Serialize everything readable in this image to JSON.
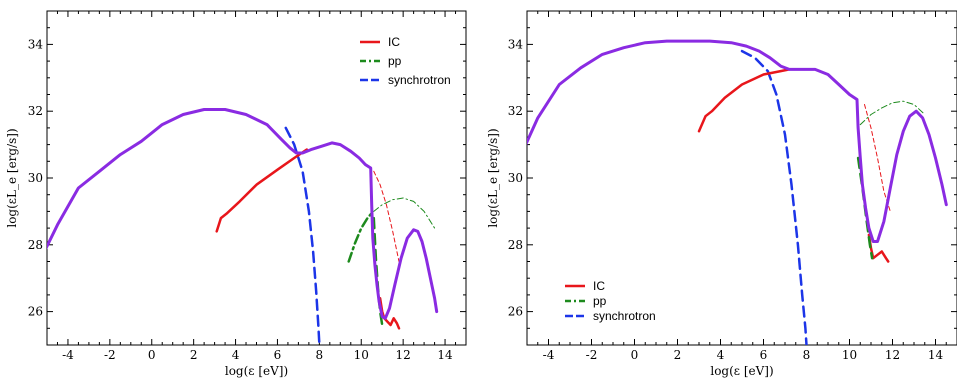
{
  "chart_data": [
    {
      "type": "line",
      "xlabel": "log(ε [eV])",
      "ylabel": "log(εL_e [erg/s])",
      "xlim": [
        -5,
        15
      ],
      "ylim": [
        25,
        35
      ],
      "xticks": [
        -4,
        -2,
        0,
        2,
        4,
        6,
        8,
        10,
        12,
        14
      ],
      "yticks": [
        26,
        28,
        30,
        32,
        34
      ],
      "grid": false,
      "legend_position": "top-right",
      "legend": [
        {
          "label": "IC",
          "color": "#e8161b",
          "dash": "solid"
        },
        {
          "label": "pp",
          "color": "#1d8a1d",
          "dash": "dashdot"
        },
        {
          "label": "synchrotron",
          "color": "#1c35e8",
          "dash": "dashed"
        }
      ],
      "series": [
        {
          "name": "synchrotron",
          "color": "#1c35e8",
          "dash": "dashed",
          "width": 2.5,
          "x": [
            6.4,
            6.8,
            7.2,
            7.5,
            7.7,
            7.85,
            7.95,
            8.0
          ],
          "y": [
            31.5,
            31.0,
            30.2,
            29.0,
            27.8,
            26.6,
            25.6,
            25.0
          ]
        },
        {
          "name": "IC",
          "color": "#e8161b",
          "dash": "solid",
          "width": 2.5,
          "x": [
            3.1,
            3.3,
            3.6,
            4.2,
            5.0,
            6.0,
            6.8,
            7.4
          ],
          "y": [
            28.4,
            28.8,
            28.95,
            29.3,
            29.8,
            30.25,
            30.6,
            30.85
          ]
        },
        {
          "name": "IC",
          "color": "#e8161b",
          "dash": "solid",
          "width": 2.5,
          "x": [
            10.9,
            11.0,
            11.1,
            11.25,
            11.4,
            11.55,
            11.7,
            11.8
          ],
          "y": [
            26.4,
            26.0,
            25.8,
            25.7,
            25.6,
            25.8,
            25.65,
            25.5
          ]
        },
        {
          "name": "IC",
          "color": "#e8161b",
          "dash": "dashed-thin",
          "width": 1,
          "x": [
            10.6,
            10.9,
            11.2,
            11.5,
            11.8
          ],
          "y": [
            30.2,
            29.8,
            29.2,
            28.4,
            27.5
          ]
        },
        {
          "name": "pp",
          "color": "#1d8a1d",
          "dash": "dashdot",
          "width": 2.5,
          "x": [
            9.4,
            9.7,
            10.0,
            10.3,
            10.5
          ],
          "y": [
            27.5,
            28.05,
            28.5,
            28.8,
            28.95
          ]
        },
        {
          "name": "pp",
          "color": "#1d8a1d",
          "dash": "dashed",
          "width": 2.5,
          "x": [
            10.6,
            10.7,
            10.8,
            10.9,
            11.0,
            11.05
          ],
          "y": [
            28.8,
            27.6,
            26.7,
            26.0,
            25.6,
            25.5
          ]
        },
        {
          "name": "pp",
          "color": "#1d8a1d",
          "dash": "dashdot-thin",
          "width": 1,
          "x": [
            10.6,
            11.0,
            11.5,
            12.0,
            12.5,
            13.0,
            13.5
          ],
          "y": [
            29.0,
            29.2,
            29.35,
            29.4,
            29.3,
            29.0,
            28.5
          ]
        },
        {
          "name": "total",
          "color": "#8a2be2",
          "dash": "solid",
          "width": 3,
          "x": [
            -5.2,
            -4.5,
            -3.5,
            -2.5,
            -1.5,
            -0.5,
            0.5,
            1.5,
            2.5,
            3.5,
            4.5,
            5.5,
            6.2,
            6.6,
            6.9,
            7.2,
            7.6,
            8.1,
            8.6,
            9.0,
            9.5,
            9.9,
            10.2,
            10.45,
            10.5,
            10.55,
            10.65,
            10.75,
            10.85,
            11.0,
            11.15,
            11.35,
            11.6,
            11.9,
            12.2,
            12.5,
            12.7,
            12.9,
            13.1,
            13.3,
            13.5,
            13.6
          ],
          "y": [
            27.7,
            28.6,
            29.7,
            30.2,
            30.7,
            31.1,
            31.6,
            31.9,
            32.05,
            32.05,
            31.9,
            31.6,
            31.15,
            30.9,
            30.75,
            30.75,
            30.85,
            30.95,
            31.05,
            31.0,
            30.8,
            30.6,
            30.4,
            30.3,
            29.2,
            28.2,
            27.4,
            26.8,
            26.3,
            25.85,
            25.8,
            26.1,
            26.8,
            27.6,
            28.2,
            28.45,
            28.4,
            28.1,
            27.6,
            27.0,
            26.4,
            26.0
          ]
        }
      ]
    },
    {
      "type": "line",
      "xlabel": "log(ε [eV])",
      "ylabel": "log(εL_e [erg/s])",
      "xlim": [
        -5,
        15
      ],
      "ylim": [
        25,
        35
      ],
      "xticks": [
        -4,
        -2,
        0,
        2,
        4,
        6,
        8,
        10,
        12,
        14
      ],
      "yticks": [
        26,
        28,
        30,
        32,
        34
      ],
      "grid": false,
      "legend_position": "bottom-left",
      "legend": [
        {
          "label": "IC",
          "color": "#e8161b",
          "dash": "solid"
        },
        {
          "label": "pp",
          "color": "#1d8a1d",
          "dash": "dashdot"
        },
        {
          "label": "synchrotron",
          "color": "#1c35e8",
          "dash": "dashed"
        }
      ],
      "series": [
        {
          "name": "synchrotron",
          "color": "#1c35e8",
          "dash": "dashed",
          "width": 2.5,
          "x": [
            5.0,
            5.6,
            6.2,
            6.6,
            7.0,
            7.3,
            7.6,
            7.8,
            7.95,
            8.0
          ],
          "y": [
            33.8,
            33.6,
            33.2,
            32.5,
            31.3,
            29.8,
            28.0,
            26.5,
            25.5,
            25.0
          ]
        },
        {
          "name": "IC",
          "color": "#e8161b",
          "dash": "solid",
          "width": 2.5,
          "x": [
            3.0,
            3.3,
            3.6,
            4.2,
            5.0,
            6.0,
            6.8,
            7.2
          ],
          "y": [
            31.4,
            31.85,
            32.0,
            32.4,
            32.8,
            33.1,
            33.2,
            33.25
          ]
        },
        {
          "name": "IC",
          "color": "#e8161b",
          "dash": "solid",
          "width": 2.5,
          "x": [
            10.9,
            11.0,
            11.1,
            11.3,
            11.5,
            11.7,
            11.8
          ],
          "y": [
            28.3,
            27.9,
            27.6,
            27.7,
            27.8,
            27.6,
            27.5
          ]
        },
        {
          "name": "IC",
          "color": "#e8161b",
          "dash": "dashed-thin",
          "width": 1,
          "x": [
            10.7,
            11.0,
            11.3,
            11.6,
            11.9
          ],
          "y": [
            32.2,
            31.5,
            30.6,
            29.6,
            29.0
          ]
        },
        {
          "name": "pp",
          "color": "#1d8a1d",
          "dash": "dashed",
          "width": 2.5,
          "x": [
            10.4,
            10.6,
            10.8,
            10.95,
            11.05
          ],
          "y": [
            30.6,
            29.7,
            28.7,
            28.0,
            27.6
          ]
        },
        {
          "name": "pp",
          "color": "#1d8a1d",
          "dash": "dashdot-thin",
          "width": 1,
          "x": [
            10.5,
            11.0,
            11.5,
            12.0,
            12.5,
            13.0,
            13.5
          ],
          "y": [
            31.6,
            31.9,
            32.1,
            32.25,
            32.3,
            32.2,
            31.9
          ]
        },
        {
          "name": "total",
          "color": "#8a2be2",
          "dash": "solid",
          "width": 3,
          "x": [
            -5.2,
            -4.5,
            -3.5,
            -2.5,
            -1.5,
            -0.5,
            0.5,
            1.5,
            2.5,
            3.5,
            4.5,
            5.2,
            5.8,
            6.3,
            6.8,
            7.2,
            7.8,
            8.4,
            9.0,
            9.5,
            10.0,
            10.35,
            10.4,
            10.5,
            10.6,
            10.75,
            10.9,
            11.1,
            11.3,
            11.6,
            11.9,
            12.2,
            12.5,
            12.8,
            13.1,
            13.4,
            13.7,
            14.0,
            14.3,
            14.5
          ],
          "y": [
            30.8,
            31.8,
            32.8,
            33.3,
            33.7,
            33.9,
            34.05,
            34.1,
            34.1,
            34.1,
            34.05,
            33.95,
            33.8,
            33.6,
            33.35,
            33.25,
            33.25,
            33.25,
            33.1,
            32.8,
            32.5,
            32.35,
            31.5,
            30.6,
            29.8,
            29.1,
            28.5,
            28.1,
            28.1,
            28.7,
            29.7,
            30.7,
            31.4,
            31.85,
            32.0,
            31.8,
            31.3,
            30.6,
            29.8,
            29.2
          ]
        }
      ]
    }
  ]
}
